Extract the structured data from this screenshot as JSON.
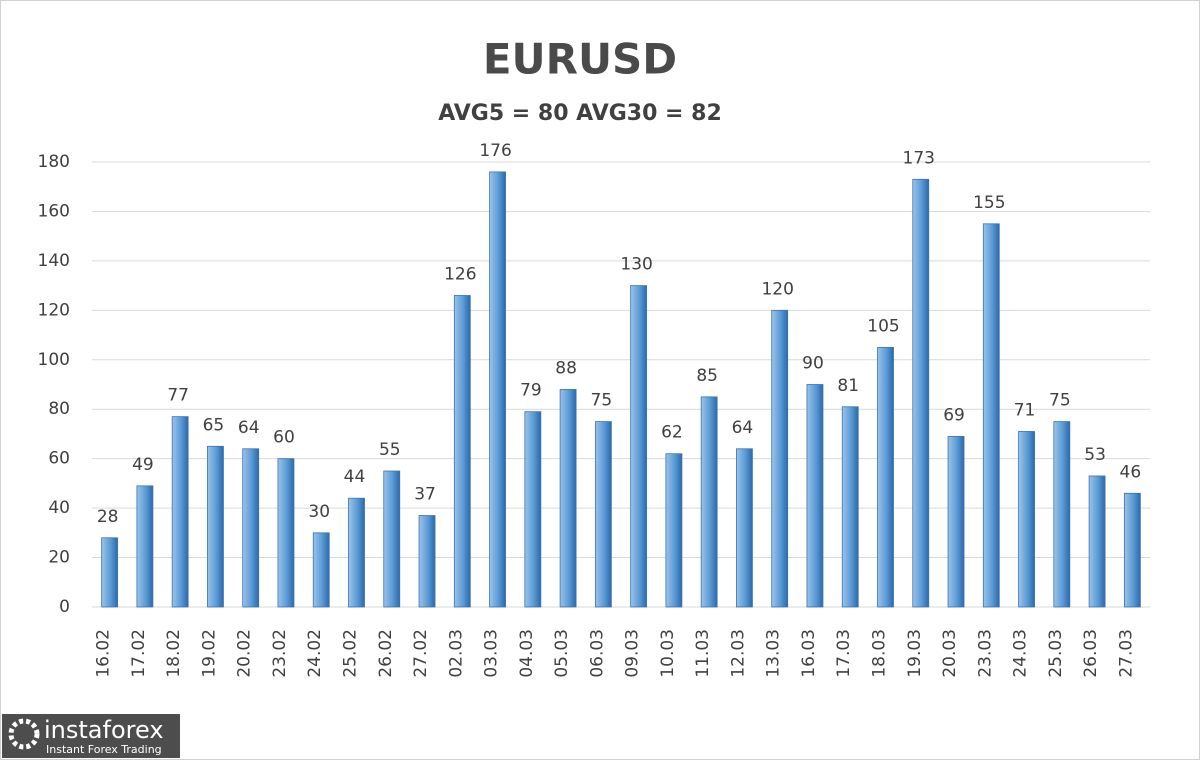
{
  "chart_data": {
    "type": "bar",
    "title": "EURUSD",
    "subtitle": "AVG5 = 80 AVG30 = 82",
    "categories": [
      "16.02",
      "17.02",
      "18.02",
      "19.02",
      "20.02",
      "23.02",
      "24.02",
      "25.02",
      "26.02",
      "27.02",
      "02.03",
      "03.03",
      "04.03",
      "05.03",
      "06.03",
      "09.03",
      "10.03",
      "11.03",
      "12.03",
      "13.03",
      "16.03",
      "17.03",
      "18.03",
      "19.03",
      "20.03",
      "23.03",
      "24.03",
      "25.03",
      "26.03",
      "27.03"
    ],
    "values": [
      28,
      49,
      77,
      65,
      64,
      60,
      30,
      44,
      55,
      37,
      126,
      176,
      79,
      88,
      75,
      130,
      62,
      85,
      64,
      120,
      90,
      81,
      105,
      173,
      69,
      155,
      71,
      75,
      53,
      46
    ],
    "color": "#5b9bd5",
    "ylim": [
      0,
      180
    ],
    "yticks": [
      0,
      20,
      40,
      60,
      80,
      100,
      120,
      140,
      160,
      180
    ],
    "grid": true
  },
  "logo": {
    "brand": "instaforex",
    "tagline": "Instant Forex Trading"
  }
}
